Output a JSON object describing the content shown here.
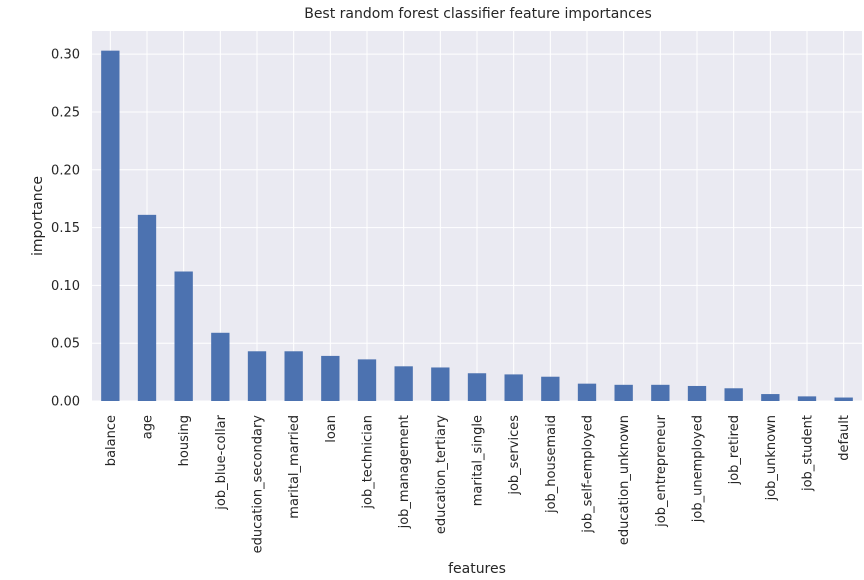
{
  "chart_data": {
    "type": "bar",
    "title": "Best random forest classifier feature importances",
    "xlabel": "features",
    "ylabel": "importance",
    "categories": [
      "balance",
      "age",
      "housing",
      "job_blue-collar",
      "education_secondary",
      "marital_married",
      "loan",
      "job_technician",
      "job_management",
      "education_tertiary",
      "marital_single",
      "job_services",
      "job_housemaid",
      "job_self-employed",
      "education_unknown",
      "job_entrepreneur",
      "job_unemployed",
      "job_retired",
      "job_unknown",
      "job_student",
      "default"
    ],
    "values": [
      0.303,
      0.161,
      0.112,
      0.059,
      0.043,
      0.043,
      0.039,
      0.036,
      0.03,
      0.029,
      0.024,
      0.023,
      0.021,
      0.015,
      0.014,
      0.014,
      0.013,
      0.011,
      0.006,
      0.004,
      0.003
    ],
    "ylim": [
      0,
      0.32
    ],
    "yticks": [
      "0.00",
      "0.05",
      "0.10",
      "0.15",
      "0.20",
      "0.25",
      "0.30"
    ],
    "grid": true,
    "legend": "none",
    "colors": {
      "bar": "#4c72b0",
      "plot_background": "#eaeaf2",
      "grid": "#ffffff"
    }
  }
}
